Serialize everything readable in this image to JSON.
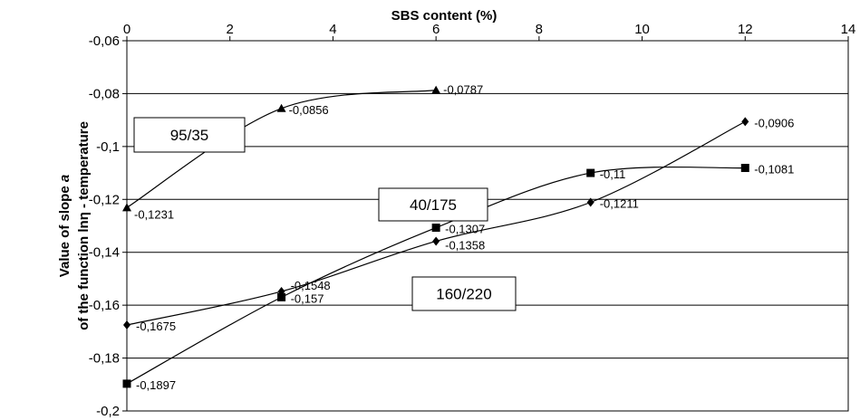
{
  "chart_data": {
    "type": "scatter",
    "xlabel": "SBS content  (%)",
    "ylabel_line1": "Value of slope a",
    "ylabel_line2": "of the function lnη - temperature",
    "xlim": [
      0,
      14
    ],
    "ylim": [
      -0.2,
      -0.06
    ],
    "x_ticks": [
      "0",
      "2",
      "4",
      "6",
      "8",
      "10",
      "12",
      "14"
    ],
    "y_ticks": [
      "-0,06",
      "-0,08",
      "-0,1",
      "-0,12",
      "-0,14",
      "-0,16",
      "-0,18",
      "-0,2"
    ],
    "grid": "horizontal",
    "x_axis_position": "top",
    "series": [
      {
        "name": "95/35",
        "marker": "triangle",
        "points": [
          {
            "x": 0,
            "y": -0.1231,
            "label": "-0,1231"
          },
          {
            "x": 3,
            "y": -0.0856,
            "label": "-0,0856"
          },
          {
            "x": 6,
            "y": -0.0787,
            "label": "-0,0787"
          }
        ]
      },
      {
        "name": "40/175",
        "marker": "square",
        "points": [
          {
            "x": 0,
            "y": -0.1897,
            "label": "-0,1897"
          },
          {
            "x": 3,
            "y": -0.157,
            "label": "-0,157"
          },
          {
            "x": 6,
            "y": -0.1307,
            "label": "-0,1307"
          },
          {
            "x": 9,
            "y": -0.11,
            "label": "-0,11"
          },
          {
            "x": 12,
            "y": -0.1081,
            "label": "-0,1081"
          }
        ]
      },
      {
        "name": "160/220",
        "marker": "diamond",
        "points": [
          {
            "x": 0,
            "y": -0.1675,
            "label": "-0,1675"
          },
          {
            "x": 3,
            "y": -0.1548,
            "label": "-0,1548"
          },
          {
            "x": 6,
            "y": -0.1358,
            "label": "-0,1358"
          },
          {
            "x": 9,
            "y": -0.1211,
            "label": "-0,1211"
          },
          {
            "x": 12,
            "y": -0.0906,
            "label": "-0,0906"
          }
        ]
      }
    ]
  }
}
